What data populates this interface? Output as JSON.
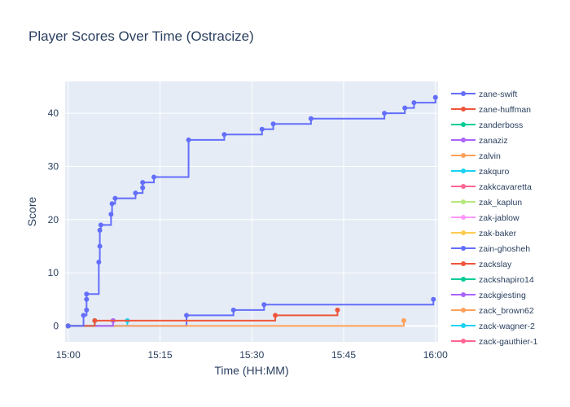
{
  "chart_data": {
    "type": "line",
    "line_shape": "step",
    "title": "Player Scores Over Time (Ostracize)",
    "xlabel": "Time (HH:MM)",
    "ylabel": "Score",
    "x_ticks": [
      "15:00",
      "15:15",
      "15:30",
      "15:45",
      "16:00"
    ],
    "y_ticks": [
      0,
      10,
      20,
      30,
      40
    ],
    "xlim": [
      "14:59:30",
      "16:00:26"
    ],
    "ylim": [
      -3,
      46
    ],
    "plot_background": "#e5ecf6",
    "grid": true,
    "legend": {
      "placement": "right",
      "scrollable": true
    },
    "series": [
      {
        "name": "zane-swift",
        "color": "#636efa",
        "x": [
          "15:00:00",
          "15:02:30",
          "15:03:00",
          "15:03:00",
          "15:03:00",
          "15:05:00",
          "15:05:10",
          "15:05:10",
          "15:05:20",
          "15:07:00",
          "15:07:10",
          "15:07:40",
          "15:11:00",
          "15:12:10",
          "15:12:10",
          "15:14:00",
          "15:19:40",
          "15:25:30",
          "15:31:40",
          "15:33:30",
          "15:39:40",
          "15:51:40",
          "15:55:00",
          "15:56:30",
          "16:00:00"
        ],
        "y": [
          0,
          2,
          3,
          5,
          6,
          12,
          15,
          18,
          19,
          21,
          23,
          24,
          25,
          26,
          27,
          28,
          35,
          36,
          37,
          38,
          39,
          40,
          41,
          42,
          43
        ]
      },
      {
        "name": "zane-huffman",
        "color": "#ef553b",
        "x": [
          "15:00:00",
          "15:04:20",
          "15:33:50",
          "15:44:00"
        ],
        "y": [
          0,
          1,
          2,
          3
        ]
      },
      {
        "name": "zanderboss",
        "color": "#00cc96",
        "x": [
          "15:00:00",
          "15:04:20"
        ],
        "y": [
          0,
          1
        ]
      },
      {
        "name": "zanaziz",
        "color": "#ab63fa",
        "x": [
          "15:00:00",
          "15:07:20"
        ],
        "y": [
          0,
          1
        ]
      },
      {
        "name": "zalvin",
        "color": "#ffa15a",
        "x": [
          "15:00:00",
          "15:54:50"
        ],
        "y": [
          0,
          1
        ]
      },
      {
        "name": "zakquro",
        "color": "#19d3f3",
        "x": [
          "15:00:00",
          "15:09:40"
        ],
        "y": [
          0,
          1
        ]
      },
      {
        "name": "zakkcavaretta",
        "color": "#ff6692",
        "x": [
          "15:00:00"
        ],
        "y": [
          0
        ]
      },
      {
        "name": "zak_kaplun",
        "color": "#b6e880",
        "x": [
          "15:00:00"
        ],
        "y": [
          0
        ]
      },
      {
        "name": "zak-jablow",
        "color": "#ff97ff",
        "x": [
          "15:00:00"
        ],
        "y": [
          0
        ]
      },
      {
        "name": "zak-baker",
        "color": "#fecb52",
        "x": [
          "15:00:00"
        ],
        "y": [
          0
        ]
      },
      {
        "name": "zain-ghosheh",
        "color": "#636efa",
        "x": [
          "15:00:00",
          "15:19:20",
          "15:27:00",
          "15:32:00",
          "15:59:40"
        ],
        "y": [
          0,
          2,
          3,
          4,
          5
        ]
      },
      {
        "name": "zackslay",
        "color": "#ef553b",
        "x": [
          "15:00:00"
        ],
        "y": [
          0
        ]
      },
      {
        "name": "zackshapiro14",
        "color": "#00cc96",
        "x": [
          "15:00:00"
        ],
        "y": [
          0
        ]
      },
      {
        "name": "zackgiesting",
        "color": "#ab63fa",
        "x": [
          "15:00:00"
        ],
        "y": [
          0
        ]
      },
      {
        "name": "zack_brown62",
        "color": "#ffa15a",
        "x": [
          "15:00:00"
        ],
        "y": [
          0
        ]
      },
      {
        "name": "zack-wagner-2",
        "color": "#19d3f3",
        "x": [
          "15:00:00"
        ],
        "y": [
          0
        ]
      },
      {
        "name": "zack-gauthier-1",
        "color": "#ff6692",
        "x": [
          "15:00:00"
        ],
        "y": [
          0
        ]
      }
    ]
  }
}
